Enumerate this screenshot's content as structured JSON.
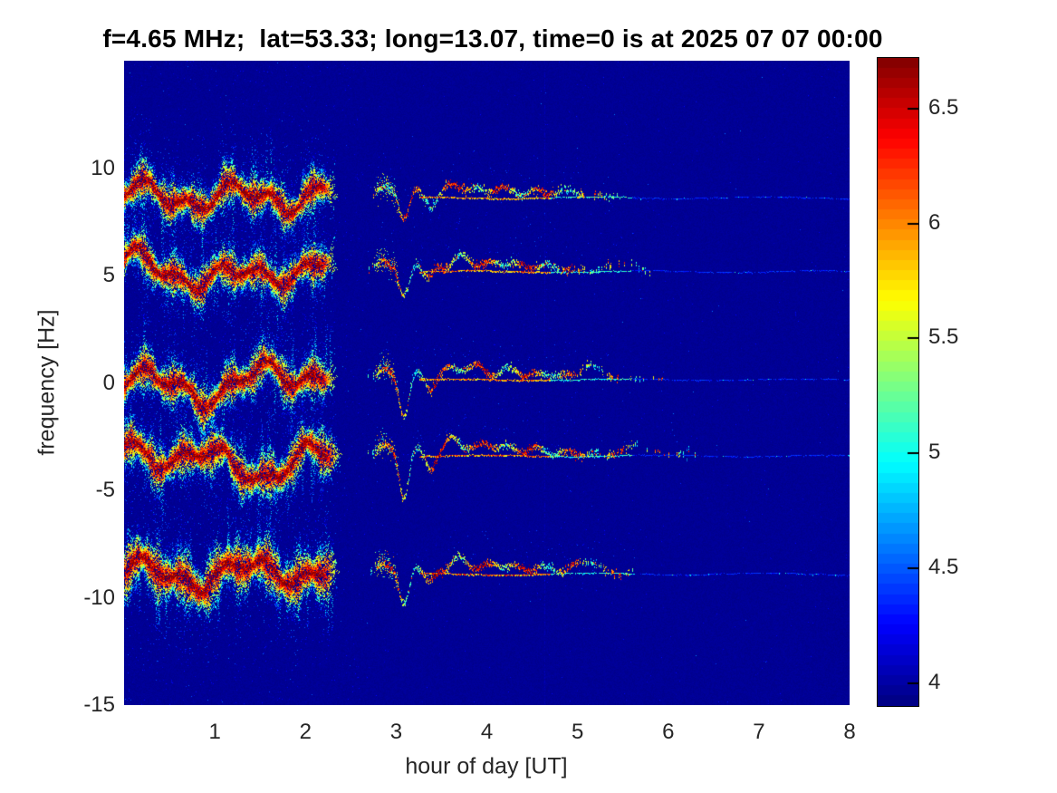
{
  "figure": {
    "title": "f=4.65 MHz;  lat=53.33; long=13.07, time=0 is at 2025 07 07 00:00",
    "xlabel": "hour of day [UT]",
    "ylabel": "frequency [Hz]"
  },
  "chart_data": {
    "type": "heatmap",
    "subtype": "doppler_spectrogram",
    "title": "f=4.65 MHz;  lat=53.33; long=13.07, time=0 is at 2025 07 07 00:00",
    "xlabel": "hour of day [UT]",
    "ylabel": "frequency [Hz]",
    "xlim": [
      0,
      8
    ],
    "ylim": [
      -15,
      15
    ],
    "xticks": [
      1,
      2,
      3,
      4,
      5,
      6,
      7,
      8
    ],
    "yticks": [
      10,
      5,
      0,
      -5,
      -10,
      -15
    ],
    "grid": false,
    "legend_position": "right-colorbar",
    "colormap": "jet",
    "color_scale": {
      "min": 3.9,
      "max": 6.72,
      "ticks": [
        4,
        4.5,
        5,
        5.5,
        6,
        6.5
      ]
    },
    "background_value": 3.96,
    "segments": {
      "strong_noisy_band": {
        "t_start": 0.0,
        "t_end": 2.32,
        "note": "broad speckled band, dark-red core, cyan fringe, vertical plumes"
      },
      "quiet_gap": {
        "t_start": 2.5,
        "t_end": 2.68
      },
      "oscillatory_trace": {
        "t_start": 2.68,
        "t_end": 6.3,
        "note": "thin wiggly line, sharp dips near hours 3.08 and 3.37, decaying bumps"
      },
      "faint_flat_line": {
        "t_start": 3.25,
        "t_end": 8.0,
        "note": "thin dashed line at baseline fading toward hour 8"
      }
    },
    "traces": [
      {
        "center_hz": 8.72,
        "seed": 101,
        "thickness": 1.0,
        "noise_end": 2.3,
        "dip1": 1.0,
        "dip2": 0.5,
        "lift": 0.5,
        "hump_t": 4.9,
        "hump_a": 0.2,
        "wiggle_end": 5.45,
        "red_line": 0.45
      },
      {
        "center_hz": 5.28,
        "seed": 202,
        "thickness": 1.0,
        "noise_end": 2.3,
        "dip1": 1.25,
        "dip2": 0.6,
        "lift": 0.55,
        "hump_t": 5.5,
        "hump_a": 0.4,
        "wiggle_end": 5.8,
        "red_line": 0.5
      },
      {
        "center_hz": 0.25,
        "seed": 303,
        "thickness": 1.05,
        "noise_end": 2.3,
        "dip1": 1.8,
        "dip2": 0.7,
        "lift": 0.6,
        "hump_t": 5.15,
        "hump_a": 0.55,
        "wiggle_end": 5.95,
        "red_line": 0.55
      },
      {
        "center_hz": -3.3,
        "seed": 404,
        "thickness": 1.1,
        "noise_end": 2.35,
        "dip1": 2.0,
        "dip2": 0.8,
        "lift": 0.6,
        "hump_t": 5.65,
        "hump_a": 0.45,
        "wiggle_end": 6.3,
        "red_line": 0.8
      },
      {
        "center_hz": -8.8,
        "seed": 505,
        "thickness": 1.3,
        "noise_end": 2.32,
        "dip1": 1.5,
        "dip2": 0.7,
        "lift": 0.55,
        "hump_t": 5.1,
        "hump_a": 0.55,
        "wiggle_end": 5.65,
        "red_line": 0.9
      }
    ],
    "artifacts": {
      "faint_vertical_stripe_hour": 4.63
    }
  }
}
